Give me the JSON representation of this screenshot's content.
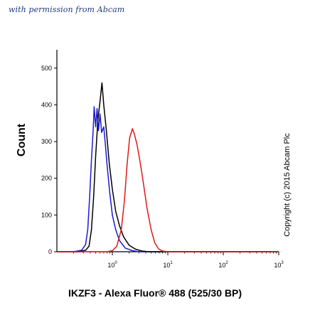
{
  "watermark": "with permission from Abcam",
  "copyright": "Copyright (c) 2015 Abcam Plc",
  "chart_data": {
    "type": "line",
    "title": "",
    "xlabel": "IKZF3 - Alexa Fluor® 488 (525/30 BP)",
    "ylabel": "Count",
    "xscale": "log",
    "xlim": [
      0.1,
      1000
    ],
    "ylim": [
      0,
      550
    ],
    "y_ticks": [
      0,
      100,
      200,
      300,
      400,
      500
    ],
    "x_ticks": [
      {
        "value": 1,
        "base": "10",
        "exp": "0"
      },
      {
        "value": 10,
        "base": "10",
        "exp": "1"
      },
      {
        "value": 100,
        "base": "10",
        "exp": "2"
      },
      {
        "value": 1000,
        "base": "10",
        "exp": "3"
      }
    ],
    "grid": false,
    "legend": "none",
    "series": [
      {
        "color": "#1a1ad6",
        "points": [
          [
            0.1,
            0
          ],
          [
            0.2,
            0
          ],
          [
            0.28,
            4
          ],
          [
            0.33,
            20
          ],
          [
            0.36,
            60
          ],
          [
            0.39,
            150
          ],
          [
            0.42,
            250
          ],
          [
            0.45,
            330
          ],
          [
            0.47,
            395
          ],
          [
            0.5,
            340
          ],
          [
            0.53,
            390
          ],
          [
            0.56,
            330
          ],
          [
            0.6,
            375
          ],
          [
            0.64,
            325
          ],
          [
            0.7,
            340
          ],
          [
            0.75,
            290
          ],
          [
            0.8,
            240
          ],
          [
            0.9,
            160
          ],
          [
            1.0,
            100
          ],
          [
            1.15,
            60
          ],
          [
            1.35,
            30
          ],
          [
            1.7,
            10
          ],
          [
            2.3,
            3
          ],
          [
            3,
            0
          ],
          [
            1000,
            0
          ]
        ]
      },
      {
        "color": "#000000",
        "points": [
          [
            0.1,
            0
          ],
          [
            0.25,
            0
          ],
          [
            0.33,
            4
          ],
          [
            0.38,
            15
          ],
          [
            0.42,
            60
          ],
          [
            0.46,
            150
          ],
          [
            0.5,
            260
          ],
          [
            0.55,
            360
          ],
          [
            0.6,
            410
          ],
          [
            0.65,
            460
          ],
          [
            0.7,
            400
          ],
          [
            0.78,
            330
          ],
          [
            0.88,
            240
          ],
          [
            1.0,
            170
          ],
          [
            1.15,
            110
          ],
          [
            1.35,
            70
          ],
          [
            1.6,
            40
          ],
          [
            2.0,
            18
          ],
          [
            2.6,
            7
          ],
          [
            3.4,
            2
          ],
          [
            4.5,
            0
          ],
          [
            1000,
            0
          ]
        ]
      },
      {
        "color": "#e01818",
        "points": [
          [
            0.1,
            0
          ],
          [
            0.8,
            0
          ],
          [
            1.0,
            3
          ],
          [
            1.2,
            15
          ],
          [
            1.45,
            60
          ],
          [
            1.65,
            140
          ],
          [
            1.85,
            240
          ],
          [
            2.05,
            310
          ],
          [
            2.3,
            335
          ],
          [
            2.5,
            320
          ],
          [
            2.8,
            290
          ],
          [
            3.2,
            240
          ],
          [
            3.6,
            190
          ],
          [
            4.2,
            120
          ],
          [
            5.0,
            60
          ],
          [
            5.8,
            25
          ],
          [
            6.8,
            8
          ],
          [
            8,
            2
          ],
          [
            10,
            0
          ],
          [
            1000,
            0
          ]
        ]
      }
    ]
  }
}
